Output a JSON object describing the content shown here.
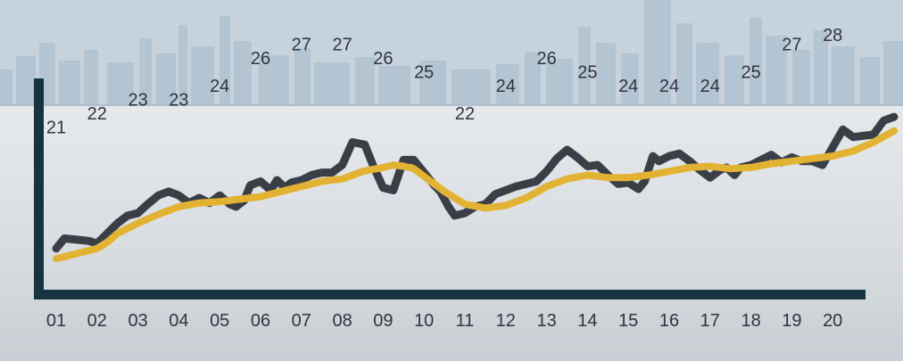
{
  "chart_data": {
    "type": "line",
    "title": "",
    "xlabel": "",
    "ylabel": "",
    "categories": [
      "01",
      "02",
      "03",
      "04",
      "05",
      "06",
      "07",
      "08",
      "09",
      "10",
      "11",
      "12",
      "13",
      "14",
      "15",
      "16",
      "17",
      "18",
      "19",
      "20"
    ],
    "data_labels": [
      "21",
      "22",
      "23",
      "23",
      "24",
      "26",
      "27",
      "27",
      "26",
      "25",
      "22",
      "24",
      "26",
      "25",
      "24",
      "24",
      "24",
      "25",
      "27",
      "28"
    ],
    "ylim": [
      19.5,
      29
    ],
    "grid": false,
    "legend": "none",
    "series": [
      {
        "style": "raw",
        "color": "#3a3f47",
        "x": [
          0.0,
          0.2,
          0.5,
          0.8,
          1.0,
          1.25,
          1.5,
          1.75,
          2.0,
          2.2,
          2.5,
          2.75,
          3.0,
          3.25,
          3.5,
          3.75,
          4.0,
          4.25,
          4.4,
          4.6,
          4.75,
          5.0,
          5.25,
          5.4,
          5.6,
          5.75,
          6.0,
          6.25,
          6.5,
          6.75,
          7.0,
          7.25,
          7.4,
          7.55,
          7.75,
          8.0,
          8.25,
          8.5,
          8.75,
          9.0,
          9.25,
          9.4,
          9.6,
          9.75,
          10.0,
          10.25,
          10.5,
          10.75,
          11.0,
          11.25,
          11.5,
          11.75,
          12.0,
          12.25,
          12.5,
          12.75,
          13.0,
          13.25,
          13.5,
          13.75,
          14.0,
          14.25,
          14.4,
          14.6,
          14.75,
          15.0,
          15.25,
          15.5,
          15.75,
          16.0,
          16.25,
          16.4,
          16.6,
          16.75,
          17.0,
          17.25,
          17.5,
          17.75,
          18.0,
          18.25,
          18.5,
          18.75,
          19.0,
          19.25,
          19.5,
          19.75,
          20.0,
          20.25,
          20.5
        ],
        "values": [
          21.3,
          21.7,
          21.65,
          21.6,
          21.5,
          21.9,
          22.3,
          22.6,
          22.7,
          23.0,
          23.4,
          23.55,
          23.4,
          23.1,
          23.3,
          23.1,
          23.4,
          23.05,
          22.95,
          23.2,
          23.8,
          23.95,
          23.6,
          24.0,
          23.7,
          23.9,
          24.0,
          24.2,
          24.3,
          24.3,
          24.6,
          25.5,
          25.45,
          25.4,
          24.6,
          23.7,
          23.6,
          24.8,
          24.8,
          24.3,
          23.8,
          23.55,
          22.95,
          22.6,
          22.7,
          22.95,
          23.05,
          23.45,
          23.6,
          23.75,
          23.85,
          23.95,
          24.35,
          24.85,
          25.2,
          24.9,
          24.55,
          24.6,
          24.2,
          23.85,
          23.9,
          23.65,
          23.95,
          24.95,
          24.75,
          24.95,
          25.05,
          24.75,
          24.4,
          24.1,
          24.4,
          24.5,
          24.2,
          24.5,
          24.6,
          24.8,
          25.0,
          24.7,
          24.9,
          24.75,
          24.75,
          24.6,
          25.3,
          26.0,
          25.7,
          25.75,
          25.8,
          26.35,
          26.5
        ]
      },
      {
        "style": "smoothed",
        "color": "#e2b333",
        "x": [
          0.0,
          0.5,
          1.0,
          1.25,
          1.5,
          2.0,
          2.5,
          3.0,
          3.5,
          4.0,
          4.5,
          5.0,
          5.5,
          6.0,
          6.5,
          7.0,
          7.5,
          8.0,
          8.25,
          8.5,
          8.75,
          9.0,
          9.5,
          10.0,
          10.5,
          11.0,
          11.5,
          12.0,
          12.5,
          13.0,
          13.5,
          14.0,
          14.5,
          15.0,
          15.5,
          16.0,
          16.5,
          17.0,
          17.5,
          18.0,
          18.5,
          19.0,
          19.5,
          20.0,
          20.5
        ],
        "values": [
          20.9,
          21.1,
          21.3,
          21.55,
          21.9,
          22.3,
          22.65,
          22.95,
          23.1,
          23.15,
          23.25,
          23.35,
          23.55,
          23.75,
          23.95,
          24.05,
          24.35,
          24.5,
          24.6,
          24.55,
          24.45,
          24.15,
          23.55,
          23.05,
          22.9,
          23.0,
          23.3,
          23.75,
          24.05,
          24.2,
          24.1,
          24.1,
          24.2,
          24.35,
          24.5,
          24.55,
          24.45,
          24.5,
          24.65,
          24.75,
          24.85,
          24.95,
          25.15,
          25.5,
          25.95
        ]
      }
    ],
    "colors": {
      "axis": "#14353f",
      "sky": "#c7d3dc",
      "skyline": "#b3c5d2",
      "background": "#d9dde1",
      "text": "#2f3540"
    }
  }
}
